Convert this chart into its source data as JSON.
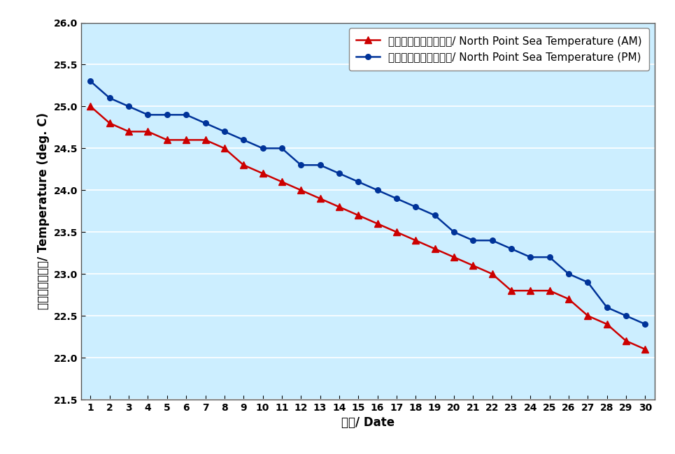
{
  "days": [
    1,
    2,
    3,
    4,
    5,
    6,
    7,
    8,
    9,
    10,
    11,
    12,
    13,
    14,
    15,
    16,
    17,
    18,
    19,
    20,
    21,
    22,
    23,
    24,
    25,
    26,
    27,
    28,
    29,
    30
  ],
  "am_values": [
    25.0,
    24.8,
    24.7,
    24.7,
    24.6,
    24.6,
    24.6,
    24.5,
    24.3,
    24.2,
    24.1,
    24.0,
    23.9,
    23.8,
    23.7,
    23.6,
    23.5,
    23.4,
    23.3,
    23.2,
    23.1,
    23.0,
    22.8,
    22.8,
    22.8,
    22.7,
    22.5,
    22.4,
    22.2,
    22.1
  ],
  "pm_values": [
    25.3,
    25.1,
    25.0,
    24.9,
    24.9,
    24.9,
    24.8,
    24.7,
    24.6,
    24.5,
    24.5,
    24.3,
    24.3,
    24.2,
    24.1,
    24.0,
    23.9,
    23.8,
    23.7,
    23.5,
    23.4,
    23.4,
    23.3,
    23.2,
    23.2,
    23.0,
    22.9,
    22.6,
    22.5,
    22.4
  ],
  "am_color": "#cc0000",
  "pm_color": "#003399",
  "bg_color": "#cceeff",
  "outer_bg": "#ffffff",
  "ylim": [
    21.5,
    26.0
  ],
  "yticks": [
    21.5,
    22.0,
    22.5,
    23.0,
    23.5,
    24.0,
    24.5,
    25.0,
    25.5,
    26.0
  ],
  "xlabel": "日期/ Date",
  "ylabel": "温度（攝氏度）/ Temperature (deg. C)",
  "legend_am": "北角海水温度（上午）/ North Point Sea Temperature (AM)",
  "legend_pm": "北角海水温度（下午）/ North Point Sea Temperature (PM)",
  "grid_color": "#ffffff",
  "axis_fontsize": 12,
  "tick_fontsize": 10,
  "legend_fontsize": 11
}
